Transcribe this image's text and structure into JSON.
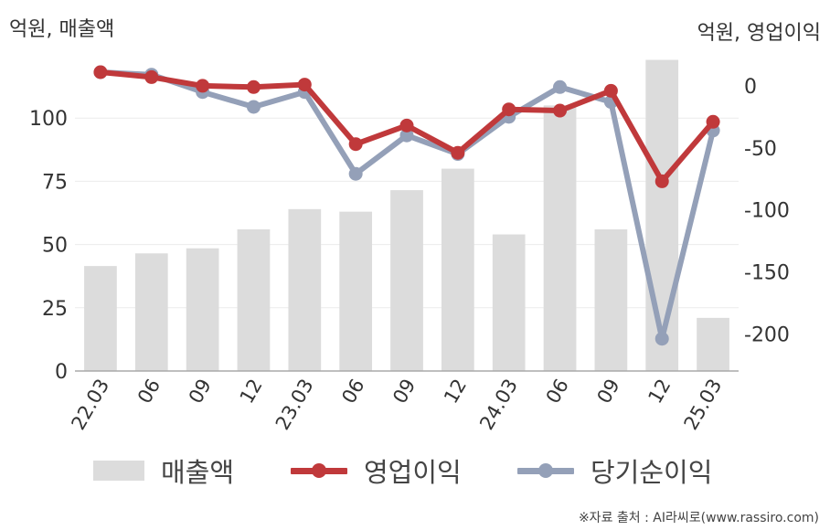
{
  "units": {
    "left": "억원, 매출액",
    "right": "억원, 영업이익"
  },
  "source": "※자료 출처 : AI라씨로(www.rassiro.com)",
  "colors": {
    "revenue": "#dcdcdc",
    "operating": "#c0393b",
    "net": "#94a0b8",
    "axis": "#aaaaaa",
    "grid": "#ececec"
  },
  "legend": [
    {
      "label": "매출액",
      "kind": "bar",
      "color": "#dcdcdc"
    },
    {
      "label": "영업이익",
      "kind": "line",
      "color": "#c0393b"
    },
    {
      "label": "당기순이익",
      "kind": "line",
      "color": "#94a0b8"
    }
  ],
  "chart_data": {
    "type": "bar",
    "categories": [
      "22.03",
      "06",
      "09",
      "12",
      "23.03",
      "06",
      "09",
      "12",
      "24.03",
      "06",
      "09",
      "12",
      "25.03"
    ],
    "series": [
      {
        "name": "매출액",
        "type": "bar",
        "axis": "left",
        "values": [
          41.5,
          46.5,
          48.5,
          56,
          64,
          63,
          71.5,
          80,
          54,
          105,
          56,
          123,
          21
        ]
      },
      {
        "name": "영업이익",
        "type": "line",
        "axis": "right",
        "values": [
          11,
          7,
          0,
          -1,
          1,
          -47,
          -32,
          -54,
          -19,
          -20,
          -4,
          -77,
          -29
        ]
      },
      {
        "name": "당기순이익",
        "type": "line",
        "axis": "right",
        "values": [
          11,
          9,
          -5,
          -17,
          -5,
          -71,
          -40,
          -55,
          -25,
          -1,
          -13,
          -204,
          -36
        ]
      }
    ],
    "left_axis": {
      "ylim": [
        0,
        125
      ],
      "ticks": [
        0,
        25,
        50,
        75,
        100
      ]
    },
    "right_axis": {
      "ylim": [
        -230,
        25
      ],
      "ticks": [
        0,
        -50,
        -100,
        -150,
        -200
      ]
    },
    "grid": true,
    "legend_position": "bottom"
  }
}
